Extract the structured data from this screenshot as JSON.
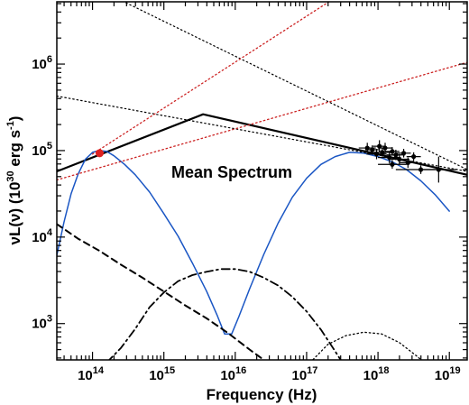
{
  "chart_data": {
    "type": "line",
    "title": "",
    "annotation": "Mean Spectrum",
    "xlabel": "Frequency (Hz)",
    "ylabel": "νL(ν) (10^30 erg s^-1)",
    "ylabel_parts": {
      "main": "νL(ν) (10",
      "exp1": "30",
      "mid": " erg s",
      "exp2": "-1",
      "end": ")"
    },
    "xscale": "log",
    "yscale": "log",
    "xlim_log10": [
      13.5,
      19.25
    ],
    "ylim_log10": [
      2.58,
      6.72
    ],
    "grid": false,
    "xticks": [
      {
        "base": "10",
        "exp": "14",
        "log": 14
      },
      {
        "base": "10",
        "exp": "15",
        "log": 15
      },
      {
        "base": "10",
        "exp": "16",
        "log": 16
      },
      {
        "base": "10",
        "exp": "17",
        "log": 17
      },
      {
        "base": "10",
        "exp": "18",
        "log": 18
      },
      {
        "base": "10",
        "exp": "19",
        "log": 19
      }
    ],
    "yticks": [
      {
        "base": "10",
        "exp": "3",
        "log": 3
      },
      {
        "base": "10",
        "exp": "4",
        "log": 4
      },
      {
        "base": "10",
        "exp": "5",
        "log": 5
      },
      {
        "base": "10",
        "exp": "6",
        "log": 6
      }
    ],
    "series": [
      {
        "id": "broken-power-law",
        "color": "#000000",
        "width": 2.2,
        "dash": "",
        "points": [
          [
            13.5,
            4.76
          ],
          [
            15.55,
            5.42
          ],
          [
            19.25,
            4.72
          ]
        ]
      },
      {
        "id": "synchrotron-ic-model",
        "color": "#1a56c4",
        "width": 1.5,
        "dash": "",
        "points": [
          [
            13.5,
            3.79
          ],
          [
            13.6,
            4.17
          ],
          [
            13.7,
            4.5
          ],
          [
            13.8,
            4.73
          ],
          [
            13.9,
            4.9
          ],
          [
            14.0,
            4.98
          ],
          [
            14.1,
            5.0
          ],
          [
            14.2,
            4.99
          ],
          [
            14.3,
            4.94
          ],
          [
            14.45,
            4.84
          ],
          [
            14.6,
            4.72
          ],
          [
            14.8,
            4.52
          ],
          [
            15.0,
            4.27
          ],
          [
            15.2,
            4.01
          ],
          [
            15.4,
            3.7
          ],
          [
            15.6,
            3.37
          ],
          [
            15.75,
            3.09
          ],
          [
            15.85,
            2.88
          ],
          [
            15.95,
            2.88
          ],
          [
            16.05,
            3.08
          ],
          [
            16.2,
            3.4
          ],
          [
            16.4,
            3.8
          ],
          [
            16.6,
            4.16
          ],
          [
            16.8,
            4.46
          ],
          [
            17.0,
            4.68
          ],
          [
            17.2,
            4.84
          ],
          [
            17.4,
            4.93
          ],
          [
            17.6,
            4.98
          ],
          [
            17.8,
            4.97
          ],
          [
            18.0,
            4.93
          ],
          [
            18.2,
            4.87
          ],
          [
            18.4,
            4.78
          ],
          [
            18.6,
            4.65
          ],
          [
            18.8,
            4.49
          ],
          [
            19.0,
            4.3
          ]
        ]
      },
      {
        "id": "dashed-component",
        "color": "#000000",
        "width": 2.0,
        "dash": "7 5",
        "points": [
          [
            13.5,
            4.15
          ],
          [
            13.8,
            3.98
          ],
          [
            14.1,
            3.84
          ],
          [
            14.4,
            3.68
          ],
          [
            14.7,
            3.53
          ],
          [
            15.0,
            3.37
          ],
          [
            15.3,
            3.21
          ],
          [
            15.6,
            3.06
          ],
          [
            15.9,
            2.89
          ],
          [
            16.2,
            2.7
          ],
          [
            16.45,
            2.55
          ]
        ]
      },
      {
        "id": "dash-dot-component",
        "color": "#000000",
        "width": 1.8,
        "dash": "9 4 2 4",
        "points": [
          [
            14.2,
            2.55
          ],
          [
            14.4,
            2.72
          ],
          [
            14.6,
            2.94
          ],
          [
            14.8,
            3.19
          ],
          [
            15.0,
            3.36
          ],
          [
            15.2,
            3.49
          ],
          [
            15.4,
            3.56
          ],
          [
            15.6,
            3.6
          ],
          [
            15.8,
            3.63
          ],
          [
            16.0,
            3.63
          ],
          [
            16.2,
            3.6
          ],
          [
            16.4,
            3.53
          ],
          [
            16.6,
            3.44
          ],
          [
            16.8,
            3.31
          ],
          [
            17.0,
            3.14
          ],
          [
            17.2,
            2.93
          ],
          [
            17.4,
            2.68
          ],
          [
            17.5,
            2.55
          ]
        ]
      },
      {
        "id": "dotted-bump",
        "color": "#000000",
        "width": 1.3,
        "dash": "1.5 3",
        "points": [
          [
            17.05,
            2.55
          ],
          [
            17.3,
            2.76
          ],
          [
            17.55,
            2.86
          ],
          [
            17.8,
            2.9
          ],
          [
            18.05,
            2.88
          ],
          [
            18.3,
            2.78
          ],
          [
            18.55,
            2.62
          ],
          [
            18.65,
            2.55
          ]
        ]
      },
      {
        "id": "dotted-line-steep",
        "color": "#000000",
        "width": 1.2,
        "dash": "1.5 3",
        "points": [
          [
            13.5,
            7.1
          ],
          [
            19.25,
            4.78
          ]
        ]
      },
      {
        "id": "dotted-line-shallow",
        "color": "#000000",
        "width": 1.2,
        "dash": "1.5 3",
        "points": [
          [
            13.5,
            5.63
          ],
          [
            19.25,
            4.76
          ]
        ]
      },
      {
        "id": "red-dotted-steep",
        "color": "#cc2222",
        "width": 1.3,
        "dash": "1.5 3",
        "points": [
          [
            14.0,
            4.96
          ],
          [
            17.8,
            6.98
          ]
        ]
      },
      {
        "id": "red-dotted-shallow",
        "color": "#cc2222",
        "width": 1.3,
        "dash": "1.5 3",
        "points": [
          [
            13.5,
            4.66
          ],
          [
            19.25,
            6.02
          ]
        ]
      }
    ],
    "markers": [
      {
        "id": "optical-point",
        "color": "#dd2222",
        "x": 14.1,
        "y": 4.97
      }
    ],
    "error_points": [
      {
        "x": 17.85,
        "y": 5.03,
        "xerr": 0.12,
        "yerr": 0.06
      },
      {
        "x": 17.92,
        "y": 5.01,
        "xerr": 0.1,
        "yerr": 0.05
      },
      {
        "x": 17.98,
        "y": 4.96,
        "xerr": 0.14,
        "yerr": 0.06
      },
      {
        "x": 18.02,
        "y": 5.05,
        "xerr": 0.09,
        "yerr": 0.07
      },
      {
        "x": 18.06,
        "y": 4.98,
        "xerr": 0.12,
        "yerr": 0.05
      },
      {
        "x": 18.1,
        "y": 5.03,
        "xerr": 0.1,
        "yerr": 0.06
      },
      {
        "x": 18.16,
        "y": 4.92,
        "xerr": 0.16,
        "yerr": 0.07
      },
      {
        "x": 18.2,
        "y": 4.99,
        "xerr": 0.1,
        "yerr": 0.05
      },
      {
        "x": 18.25,
        "y": 4.95,
        "xerr": 0.13,
        "yerr": 0.06
      },
      {
        "x": 18.3,
        "y": 4.9,
        "xerr": 0.14,
        "yerr": 0.06
      },
      {
        "x": 18.36,
        "y": 4.97,
        "xerr": 0.1,
        "yerr": 0.05
      },
      {
        "x": 18.42,
        "y": 4.86,
        "xerr": 0.12,
        "yerr": 0.06
      },
      {
        "x": 18.5,
        "y": 4.93,
        "xerr": 0.1,
        "yerr": 0.05
      },
      {
        "x": 18.2,
        "y": 4.84,
        "xerr": 0.2,
        "yerr": 0.05
      },
      {
        "x": 18.6,
        "y": 4.78,
        "xerr": 0.35,
        "yerr": 0.05
      },
      {
        "x": 18.85,
        "y": 4.78,
        "xerr": 0.25,
        "yerr": 0.15
      }
    ]
  }
}
